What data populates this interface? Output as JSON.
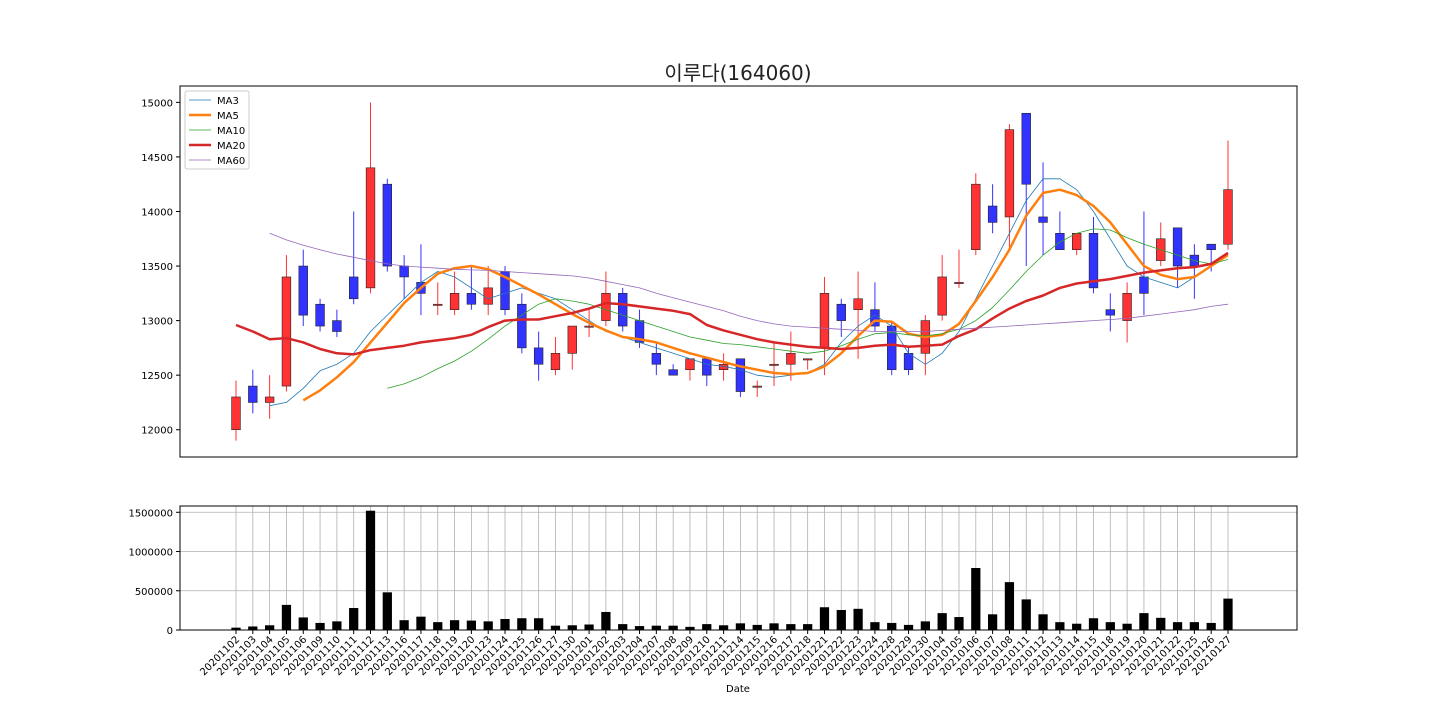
{
  "chart_data": [
    {
      "type": "candlestick",
      "title": "이루다(164060)",
      "ylim": [
        11750,
        15150
      ],
      "yticks": [
        12000,
        12500,
        13000,
        13500,
        14000,
        14500,
        15000
      ],
      "up_color": "#ff3333",
      "down_color": "#3333ff",
      "legend_position": "top-left",
      "legend": [
        {
          "name": "MA3",
          "color": "#1f77b4",
          "width": 0.8
        },
        {
          "name": "MA5",
          "color": "#ff7f0e",
          "width": 2.5
        },
        {
          "name": "MA10",
          "color": "#2ca02c",
          "width": 0.8
        },
        {
          "name": "MA20",
          "color": "#d62728",
          "width": 2.5
        },
        {
          "name": "MA60",
          "color": "#9467bd",
          "width": 0.8
        }
      ],
      "dates": [
        "20201102",
        "20201103",
        "20201104",
        "20201105",
        "20201106",
        "20201109",
        "20201110",
        "20201111",
        "20201112",
        "20201113",
        "20201116",
        "20201117",
        "20201118",
        "20201119",
        "20201120",
        "20201123",
        "20201124",
        "20201125",
        "20201126",
        "20201127",
        "20201130",
        "20201201",
        "20201202",
        "20201203",
        "20201204",
        "20201207",
        "20201208",
        "20201209",
        "20201210",
        "20201211",
        "20201214",
        "20201215",
        "20201216",
        "20201217",
        "20201218",
        "20201221",
        "20201222",
        "20201223",
        "20201224",
        "20201228",
        "20201229",
        "20201230",
        "20210104",
        "20210105",
        "20210106",
        "20210107",
        "20210108",
        "20210111",
        "20210112",
        "20210113",
        "20210114",
        "20210115",
        "20210118",
        "20210119",
        "20210120",
        "20210121",
        "20210122",
        "20210125",
        "20210126",
        "20210127"
      ],
      "ohlc": [
        [
          12000,
          12450,
          11900,
          12300
        ],
        [
          12400,
          12550,
          12150,
          12250
        ],
        [
          12250,
          12500,
          12100,
          12300
        ],
        [
          12400,
          13600,
          12350,
          13400
        ],
        [
          13500,
          13650,
          12950,
          13050
        ],
        [
          13150,
          13200,
          12900,
          12950
        ],
        [
          13000,
          13100,
          12850,
          12900
        ],
        [
          13400,
          14000,
          13150,
          13200
        ],
        [
          13300,
          15000,
          13250,
          14400
        ],
        [
          14250,
          14300,
          13450,
          13500
        ],
        [
          13500,
          13600,
          13200,
          13400
        ],
        [
          13350,
          13700,
          13050,
          13250
        ],
        [
          13150,
          13350,
          13050,
          13150
        ],
        [
          13100,
          13450,
          13050,
          13250
        ],
        [
          13250,
          13500,
          13100,
          13150
        ],
        [
          13150,
          13500,
          13050,
          13300
        ],
        [
          13450,
          13500,
          13050,
          13100
        ],
        [
          13150,
          13250,
          12700,
          12750
        ],
        [
          12750,
          12900,
          12450,
          12600
        ],
        [
          12550,
          12850,
          12500,
          12700
        ],
        [
          12700,
          12950,
          12550,
          12950
        ],
        [
          12950,
          13100,
          12850,
          12950
        ],
        [
          13000,
          13450,
          12950,
          13250
        ],
        [
          13250,
          13300,
          12900,
          12950
        ],
        [
          13000,
          13100,
          12750,
          12800
        ],
        [
          12700,
          12800,
          12500,
          12600
        ],
        [
          12550,
          12600,
          12500,
          12500
        ],
        [
          12550,
          12650,
          12450,
          12650
        ],
        [
          12650,
          12650,
          12400,
          12500
        ],
        [
          12550,
          12700,
          12450,
          12600
        ],
        [
          12650,
          12650,
          12300,
          12350
        ],
        [
          12400,
          12450,
          12300,
          12400
        ],
        [
          12600,
          12800,
          12400,
          12600
        ],
        [
          12600,
          12900,
          12450,
          12700
        ],
        [
          12650,
          12650,
          12550,
          12650
        ],
        [
          12750,
          13400,
          12500,
          13250
        ],
        [
          13150,
          13200,
          12850,
          13000
        ],
        [
          13100,
          13450,
          12650,
          13200
        ],
        [
          13100,
          13350,
          12900,
          12950
        ],
        [
          12950,
          13000,
          12500,
          12550
        ],
        [
          12700,
          12750,
          12500,
          12550
        ],
        [
          12700,
          13050,
          12500,
          13000
        ],
        [
          13050,
          13600,
          13000,
          13400
        ],
        [
          13350,
          13650,
          13300,
          13350
        ],
        [
          13650,
          14350,
          13600,
          14250
        ],
        [
          14050,
          14250,
          13800,
          13900
        ],
        [
          13950,
          14800,
          13650,
          14750
        ],
        [
          14900,
          14900,
          13500,
          14250
        ],
        [
          13950,
          14450,
          13600,
          13900
        ],
        [
          13800,
          14000,
          13650,
          13650
        ],
        [
          13650,
          13800,
          13600,
          13800
        ],
        [
          13800,
          13950,
          13250,
          13300
        ],
        [
          13100,
          13250,
          12900,
          13050
        ],
        [
          13000,
          13350,
          12800,
          13250
        ],
        [
          13400,
          14000,
          13050,
          13250
        ],
        [
          13550,
          13900,
          13500,
          13750
        ],
        [
          13850,
          13850,
          13300,
          13500
        ],
        [
          13600,
          13700,
          13200,
          13500
        ],
        [
          13700,
          13700,
          13450,
          13650
        ],
        [
          13700,
          14650,
          13650,
          14200
        ]
      ],
      "series": [
        {
          "name": "MA3",
          "values": [
            null,
            null,
            12220,
            12250,
            12380,
            12540,
            12600,
            12700,
            12900,
            13050,
            13200,
            13350,
            13450,
            13400,
            13300,
            13200,
            13250,
            13300,
            13250,
            13200,
            13100,
            13000,
            12900,
            12850,
            12800,
            12750,
            12700,
            12650,
            12600,
            12580,
            12550,
            12500,
            12480,
            12500,
            12520,
            12600,
            12800,
            12950,
            13050,
            12950,
            12700,
            12600,
            12700,
            12900,
            13200,
            13500,
            13800,
            14100,
            14300,
            14300,
            14200,
            14000,
            13750,
            13500,
            13400,
            13350,
            13300,
            13400,
            13500,
            13600
          ]
        },
        {
          "name": "MA5",
          "values": [
            null,
            null,
            null,
            null,
            12270,
            12360,
            12480,
            12620,
            12800,
            12980,
            13160,
            13300,
            13430,
            13480,
            13500,
            13470,
            13400,
            13320,
            13240,
            13150,
            13060,
            12980,
            12910,
            12850,
            12830,
            12800,
            12750,
            12700,
            12660,
            12620,
            12580,
            12550,
            12520,
            12510,
            12520,
            12580,
            12700,
            12860,
            13000,
            12990,
            12880,
            12850,
            12870,
            12970,
            13180,
            13400,
            13650,
            13960,
            14170,
            14200,
            14150,
            14050,
            13900,
            13700,
            13500,
            13420,
            13380,
            13400,
            13500,
            13600
          ]
        },
        {
          "name": "MA10",
          "values": [
            null,
            null,
            null,
            null,
            null,
            null,
            null,
            null,
            null,
            12380,
            12420,
            12480,
            12560,
            12630,
            12720,
            12830,
            12950,
            13050,
            13150,
            13200,
            13180,
            13150,
            13100,
            13050,
            13000,
            12950,
            12900,
            12850,
            12820,
            12790,
            12780,
            12760,
            12740,
            12720,
            12700,
            12720,
            12770,
            12830,
            12880,
            12890,
            12870,
            12860,
            12880,
            12920,
            13000,
            13120,
            13280,
            13450,
            13600,
            13720,
            13800,
            13840,
            13830,
            13760,
            13700,
            13650,
            13600,
            13550,
            13520,
            13560
          ]
        },
        {
          "name": "MA20",
          "values": [
            12960,
            12900,
            12830,
            12840,
            12800,
            12740,
            12700,
            12690,
            12730,
            12750,
            12770,
            12800,
            12820,
            12840,
            12870,
            12940,
            13000,
            13010,
            13010,
            13040,
            13070,
            13110,
            13160,
            13150,
            13130,
            13110,
            13090,
            13060,
            12960,
            12910,
            12870,
            12830,
            12800,
            12780,
            12760,
            12750,
            12740,
            12750,
            12770,
            12780,
            12760,
            12770,
            12780,
            12860,
            12920,
            13020,
            13110,
            13180,
            13230,
            13300,
            13340,
            13360,
            13380,
            13410,
            13440,
            13460,
            13480,
            13490,
            13520,
            13620
          ]
        },
        {
          "name": "MA60",
          "values": [
            null,
            null,
            13800,
            13740,
            13690,
            13650,
            13610,
            13580,
            13550,
            13520,
            13500,
            13490,
            13480,
            13470,
            13465,
            13460,
            13450,
            13440,
            13430,
            13420,
            13410,
            13390,
            13360,
            13330,
            13300,
            13250,
            13210,
            13170,
            13130,
            13090,
            13040,
            13000,
            12970,
            12950,
            12940,
            12930,
            12920,
            12910,
            12900,
            12900,
            12900,
            12900,
            12910,
            12920,
            12930,
            12940,
            12950,
            12960,
            12970,
            12980,
            12990,
            13000,
            13010,
            13020,
            13040,
            13060,
            13080,
            13100,
            13130,
            13150
          ]
        }
      ]
    },
    {
      "type": "bar",
      "xlabel": "Date",
      "ylim": [
        0,
        1580000
      ],
      "yticks": [
        0,
        500000,
        1000000,
        1500000
      ],
      "color": "#000000",
      "categories": [
        "20201102",
        "20201103",
        "20201104",
        "20201105",
        "20201106",
        "20201109",
        "20201110",
        "20201111",
        "20201112",
        "20201113",
        "20201116",
        "20201117",
        "20201118",
        "20201119",
        "20201120",
        "20201123",
        "20201124",
        "20201125",
        "20201126",
        "20201127",
        "20201130",
        "20201201",
        "20201202",
        "20201203",
        "20201204",
        "20201207",
        "20201208",
        "20201209",
        "20201210",
        "20201211",
        "20201214",
        "20201215",
        "20201216",
        "20201217",
        "20201218",
        "20201221",
        "20201222",
        "20201223",
        "20201224",
        "20201228",
        "20201229",
        "20201230",
        "20210104",
        "20210105",
        "20210106",
        "20210107",
        "20210108",
        "20210111",
        "20210112",
        "20210113",
        "20210114",
        "20210115",
        "20210118",
        "20210119",
        "20210120",
        "20210121",
        "20210122",
        "20210125",
        "20210126",
        "20210127"
      ],
      "values": [
        30000,
        45000,
        60000,
        320000,
        160000,
        90000,
        110000,
        280000,
        1520000,
        480000,
        125000,
        170000,
        100000,
        125000,
        120000,
        110000,
        140000,
        150000,
        150000,
        55000,
        60000,
        70000,
        230000,
        75000,
        50000,
        55000,
        55000,
        40000,
        75000,
        60000,
        85000,
        65000,
        85000,
        75000,
        75000,
        290000,
        255000,
        270000,
        100000,
        90000,
        65000,
        110000,
        215000,
        165000,
        790000,
        200000,
        610000,
        390000,
        200000,
        100000,
        80000,
        150000,
        100000,
        80000,
        215000,
        155000,
        100000,
        100000,
        90000,
        400000
      ]
    }
  ]
}
